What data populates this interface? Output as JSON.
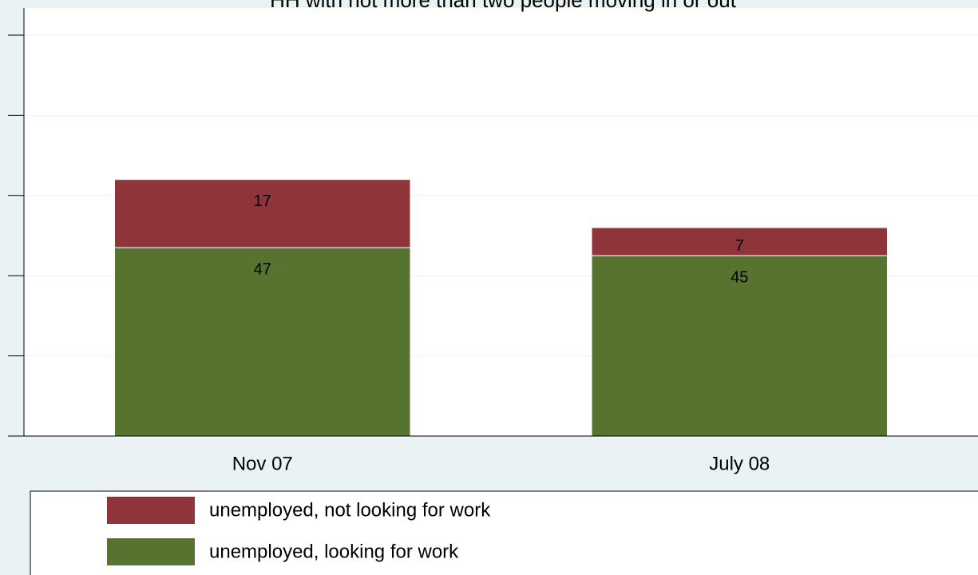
{
  "chart_data": {
    "type": "stacked_bar",
    "title": "HH with not more than two people moving in or out",
    "categories": [
      "Nov 07",
      "July 08"
    ],
    "series": [
      {
        "name": "unemployed, looking for work",
        "color": "#56732f",
        "values": [
          47,
          45
        ]
      },
      {
        "name": "unemployed, not looking for work",
        "color": "#8e353c",
        "values": [
          17,
          7
        ]
      }
    ],
    "ylim": [
      0,
      100
    ],
    "yticks": [
      0,
      20,
      40,
      60,
      80,
      100
    ],
    "grid": true
  }
}
